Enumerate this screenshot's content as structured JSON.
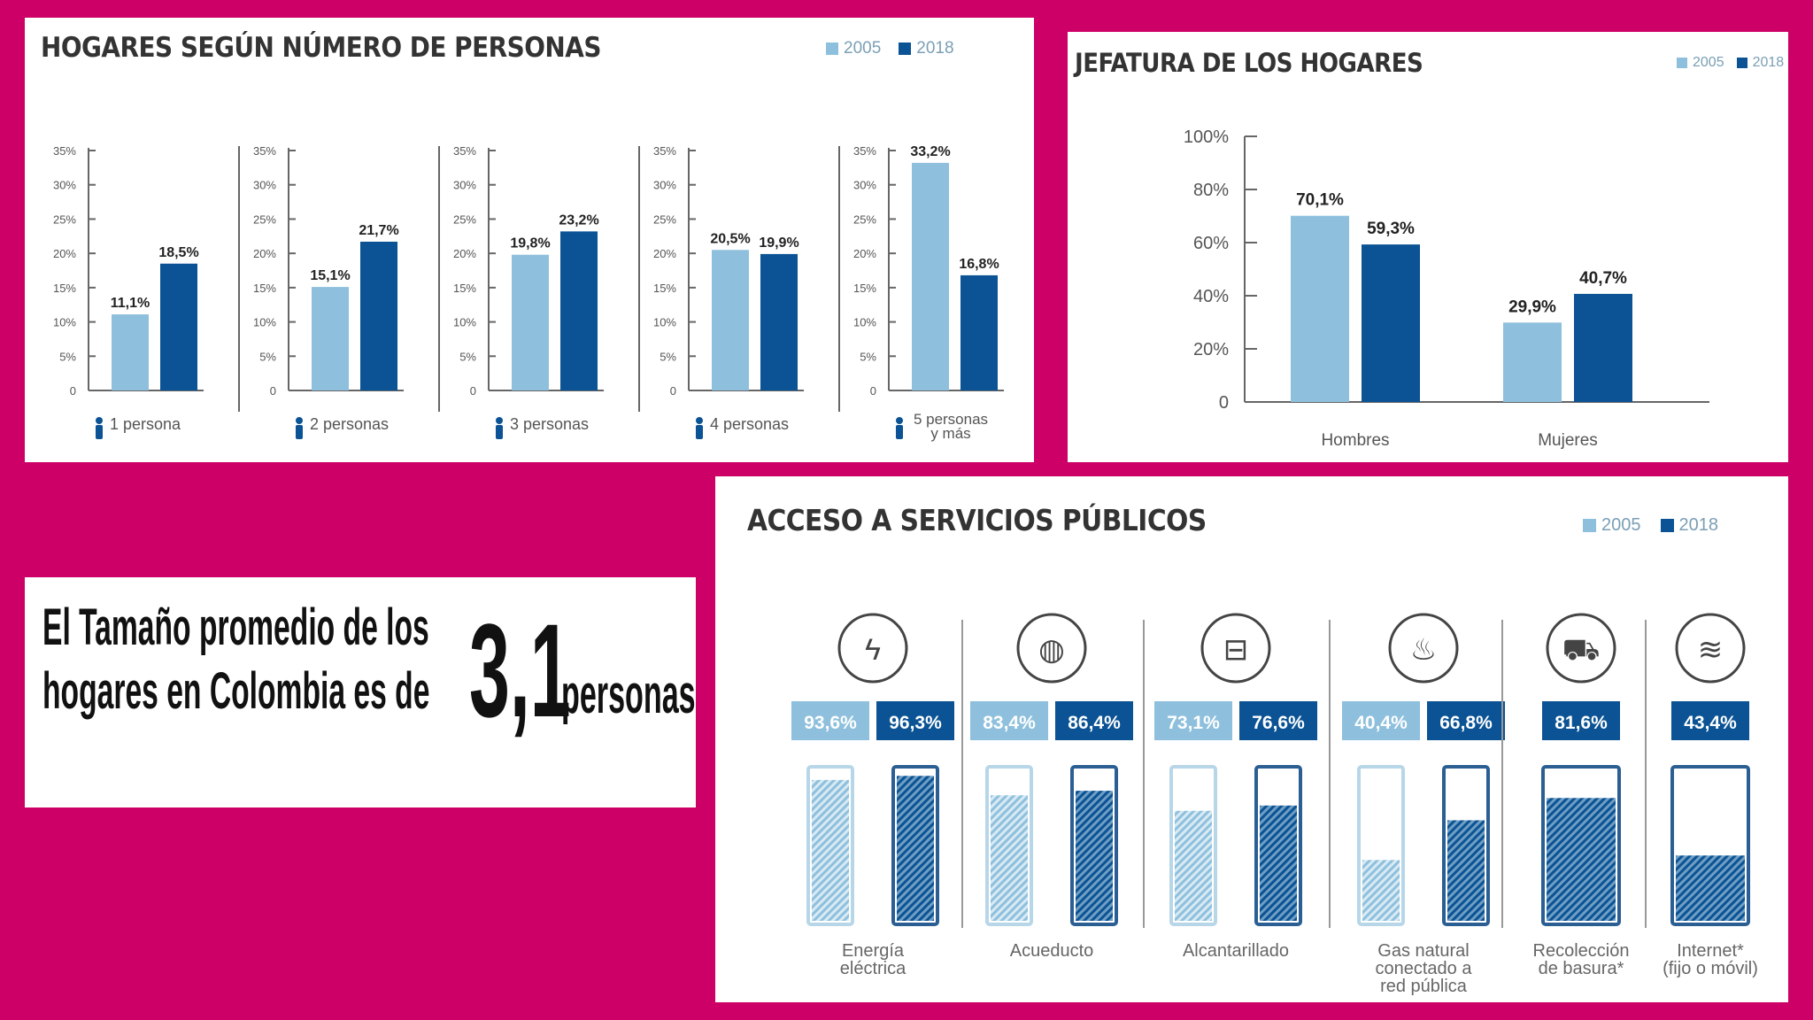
{
  "colors": {
    "background": "#cc0066",
    "light": "#8ec0dd",
    "dark": "#0b5394",
    "text": "#333333"
  },
  "legend": {
    "y2005": "2005",
    "y2018": "2018"
  },
  "panel1": {
    "title": "HOGARES SEGÚN NÚMERO DE PERSONAS",
    "ticks": [
      "35%",
      "30%",
      "25%",
      "20%",
      "15%",
      "10%",
      "5%",
      "0"
    ]
  },
  "panel2": {
    "title": "JEFATURA DE LOS HOGARES",
    "ticks": [
      "100%",
      "80%",
      "60%",
      "40%",
      "20%",
      "0"
    ]
  },
  "panel3": {
    "title": "ACCESO A SERVICIOS PÚBLICOS"
  },
  "summary": {
    "line1": "El Tamaño promedio de los",
    "line2": "hogares en Colombia es de",
    "number": "3,1",
    "unit": "personas"
  },
  "chart_data": [
    {
      "type": "bar",
      "title": "HOGARES SEGÚN NÚMERO DE PERSONAS",
      "categories": [
        "1 persona",
        "2 personas",
        "3 personas",
        "4 personas",
        "5 personas y más"
      ],
      "series": [
        {
          "name": "2005",
          "values": [
            11.1,
            15.1,
            19.8,
            20.5,
            33.2
          ],
          "labels": [
            "11,1%",
            "15,1%",
            "19,8%",
            "20,5%",
            "33,2%"
          ]
        },
        {
          "name": "2018",
          "values": [
            18.5,
            21.7,
            23.2,
            19.9,
            16.8
          ],
          "labels": [
            "18,5%",
            "21,7%",
            "23,2%",
            "19,9%",
            "16,8%"
          ]
        }
      ],
      "ylim": [
        0,
        35
      ]
    },
    {
      "type": "bar",
      "title": "JEFATURA DE LOS HOGARES",
      "categories": [
        "Hombres",
        "Mujeres"
      ],
      "series": [
        {
          "name": "2005",
          "values": [
            70.1,
            29.9
          ],
          "labels": [
            "70,1%",
            "29,9%"
          ]
        },
        {
          "name": "2018",
          "values": [
            59.3,
            40.7
          ],
          "labels": [
            "59,3%",
            "40,7%"
          ]
        }
      ],
      "ylim": [
        0,
        100
      ]
    },
    {
      "type": "bar",
      "title": "ACCESO A SERVICIOS PÚBLICOS",
      "categories": [
        {
          "lines": [
            "Energía",
            "eléctrica"
          ],
          "icon": "lightning-icon"
        },
        {
          "lines": [
            "Acueducto"
          ],
          "icon": "water-drop-icon"
        },
        {
          "lines": [
            "Alcantarillado"
          ],
          "icon": "pipe-icon"
        },
        {
          "lines": [
            "Gas natural",
            "conectado a",
            "red pública"
          ],
          "icon": "flame-icon"
        },
        {
          "lines": [
            "Recolección",
            "de basura*"
          ],
          "icon": "truck-icon"
        },
        {
          "lines": [
            "Internet*",
            "(fijo o móvil)"
          ],
          "icon": "wifi-icon"
        }
      ],
      "series": [
        {
          "name": "2005",
          "values": [
            93.6,
            83.4,
            73.1,
            40.4,
            null,
            null
          ],
          "labels": [
            "93,6%",
            "83,4%",
            "73,1%",
            "40,4%",
            "",
            ""
          ]
        },
        {
          "name": "2018",
          "values": [
            96.3,
            86.4,
            76.6,
            66.8,
            81.6,
            43.4
          ],
          "labels": [
            "96,3%",
            "86,4%",
            "76,6%",
            "66,8%",
            "81,6%",
            "43,4%"
          ]
        }
      ],
      "ylim": [
        0,
        100
      ]
    }
  ]
}
